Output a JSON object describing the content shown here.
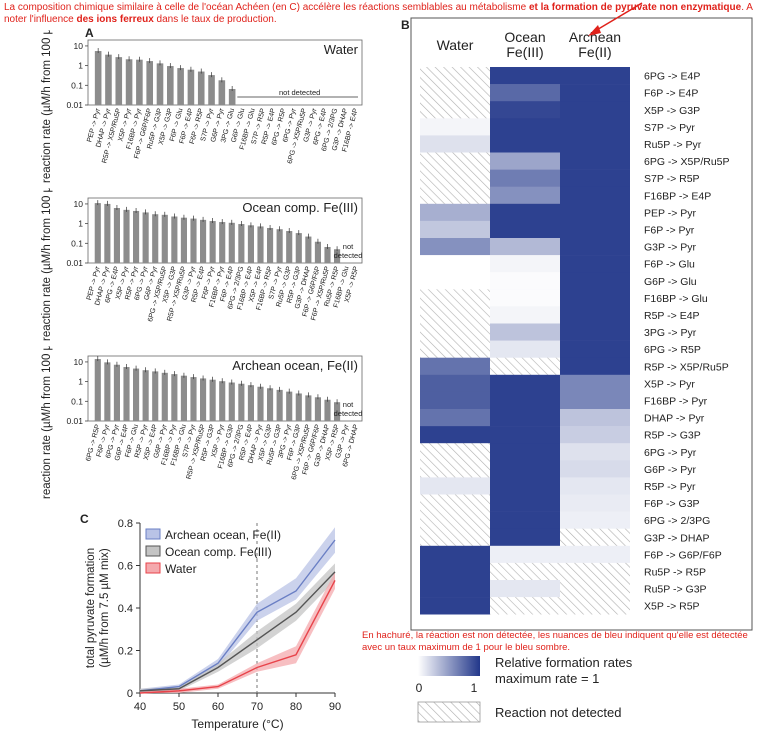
{
  "annotations": {
    "top_note_part1": "La composition chimique similaire à celle de l'océan Achéen (en C) accélère les réactions semblables au métabolisme ",
    "top_note_bold1": "et la formation de pyruvate non enzymatique",
    "top_note_part2": ". A noter l'influence ",
    "top_note_bold2": "des ions ferreux",
    "top_note_part3": " dans le taux de production.",
    "heatmap_note": "En hachuré, la réaction est non détectée, les nuances de bleu indiquent qu'elle est détectée avec un taux maximum de 1 pour le bleu sombre."
  },
  "panel_labels": {
    "a": "A",
    "b": "B",
    "c": "C"
  },
  "colors": {
    "note_red": "#e0221b",
    "bar_gray": "#8c8c8c",
    "heat_dark": "#22378a",
    "heat_light": "#ffffff",
    "line_archean": "#6a7fc4",
    "band_archean": "#b9c3e6",
    "line_ocean": "#555555",
    "band_ocean": "#c4c4c4",
    "line_water": "#e8434a",
    "band_water": "#f4a9ad"
  },
  "chart_data": [
    {
      "type": "bar",
      "title": "Water",
      "ylabel": "reaction rate (µM/h from 100 µM Substrate)",
      "yscale": "log",
      "ylim": [
        0.01,
        20
      ],
      "yticks": [
        "0.01",
        "0.1",
        "1",
        "10"
      ],
      "categories": [
        "PEP -> Pyr",
        "DHAP -> Pyr",
        "R5P -> X5P/Ru5P",
        "X5P -> Pyr",
        "F16BP -> Pyr",
        "F6P -> G6P/F6P",
        "Ru5P -> G3P",
        "X5P -> G3P",
        "F6P -> Glu",
        "F6P -> E4P",
        "F6P -> R5P",
        "S7P -> Pyr",
        "G6P -> Pyr",
        "3PG -> Glu",
        "G6P -> Glu",
        "F16BP -> Glu",
        "S7P -> R5P",
        "R5P -> E4P",
        "6PG -> R5P",
        "6PG -> Pyr",
        "6PG -> X5P/Ru5P",
        "G3P -> Pyr",
        "6PG -> E4P",
        "6PG -> 2/3PG",
        "G3P -> DHAP",
        "F16BP -> E4P"
      ],
      "values": [
        5.5,
        3.6,
        2.7,
        2.1,
        2.0,
        1.7,
        1.3,
        0.95,
        0.75,
        0.62,
        0.5,
        0.33,
        0.18,
        0.065,
        null,
        null,
        null,
        null,
        null,
        null,
        null,
        null,
        null,
        null,
        null,
        null
      ],
      "annotation": "not detected"
    },
    {
      "type": "bar",
      "title": "Ocean comp. Fe(III)",
      "ylabel": "reaction rate (µM/h from 100 µM Substrate)",
      "yscale": "log",
      "ylim": [
        0.01,
        20
      ],
      "yticks": [
        "0.01",
        "0.1",
        "1",
        "10"
      ],
      "categories": [
        "PEP -> Pyr",
        "DHAP -> Pyr",
        "6PG -> E4P",
        "X5P -> Pyr",
        "R5P -> Pyr",
        "6PG -> Pyr",
        "G6P -> Pyr",
        "6PG -> X5P/Ru5P",
        "X5P -> G3P",
        "R5P -> X5P/Ru5P",
        "G3P -> Pyr",
        "R5P -> E4P",
        "F6P -> Pyr",
        "F16BP -> Pyr",
        "F6P -> E4P",
        "6PG -> 2/3PG",
        "F16BP -> E4P",
        "X5P -> E4P",
        "F16BP -> R5P",
        "S7P -> Pyr",
        "Ru5P -> G3P",
        "R5P -> G3P",
        "G3P -> DHAP",
        "F6P -> G6P/F6P",
        "F6P -> X5P/Ru5P",
        "Ru5P -> R5P",
        "F16BP -> Glu",
        "X5P -> R5P"
      ],
      "values": [
        11.0,
        10.0,
        6.2,
        5.0,
        4.4,
        3.7,
        3.0,
        2.8,
        2.3,
        2.0,
        1.8,
        1.55,
        1.35,
        1.2,
        1.1,
        0.95,
        0.82,
        0.72,
        0.6,
        0.52,
        0.42,
        0.33,
        0.22,
        0.12,
        0.065,
        0.05,
        null,
        null
      ],
      "annotation": "not detected"
    },
    {
      "type": "bar",
      "title": "Archean ocean, Fe(II)",
      "ylabel": "reaction rate (µM/h from 100 µM Substrate)",
      "yscale": "log",
      "ylim": [
        0.01,
        20
      ],
      "yticks": [
        "0.01",
        "0.1",
        "1",
        "10"
      ],
      "categories": [
        "6PG -> R5P",
        "F6P -> Pyr",
        "6PG -> Pyr",
        "G6P -> E4P",
        "F6P -> Glu",
        "R5P -> Pyr",
        "X5P -> E4P",
        "G6P -> Pyr",
        "F16BP -> Pyr",
        "F16BP -> Glu",
        "S7P -> Pyr",
        "R5P -> X5P/Ru5P",
        "R5P -> G3P",
        "X5P -> Pyr",
        "F16BP -> G3P",
        "6PG -> 2/3PG",
        "R5P -> E4P",
        "DHAP -> Pyr",
        "X5P -> G3P",
        "Ru5P -> G3P",
        "3PG -> Pyr",
        "F6P -> G3P",
        "6PG -> X5P/Ru5P",
        "F6P -> G6P/F6P",
        "G3P -> DHAP",
        "X5P -> R5P",
        "G3P -> Pyr",
        "6PG -> DHAP"
      ],
      "values": [
        14.0,
        9.5,
        7.2,
        5.5,
        4.6,
        3.8,
        3.3,
        2.8,
        2.4,
        2.0,
        1.7,
        1.45,
        1.25,
        1.05,
        0.9,
        0.78,
        0.66,
        0.55,
        0.46,
        0.38,
        0.31,
        0.25,
        0.2,
        0.16,
        0.12,
        0.09,
        null,
        null
      ],
      "annotation": "not detected"
    },
    {
      "type": "heatmap",
      "columns": [
        "Water",
        "Ocean Fe(III)",
        "Archean Fe(II)"
      ],
      "rows": [
        "6PG -> E4P",
        "F6P -> E4P",
        "X5P -> G3P",
        "S7P -> Pyr",
        "Ru5P -> Pyr",
        "6PG -> X5P/Ru5P",
        "S7P -> R5P",
        "F16BP -> E4P",
        "PEP -> Pyr",
        "F6P -> Pyr",
        "G3P -> Pyr",
        "F6P -> Glu",
        "G6P -> Glu",
        "F16BP -> Glu",
        "R5P -> E4P",
        "3PG -> Pyr",
        "6PG -> R5P",
        "R5P -> X5P/Ru5P",
        "X5P -> Pyr",
        "F16BP -> Pyr",
        "DHAP -> Pyr",
        "R5P -> G3P",
        "6PG -> Pyr",
        "G6P -> Pyr",
        "R5P -> Pyr",
        "F6P -> G3P",
        "6PG -> 2/3PG",
        "G3P -> DHAP",
        "F6P -> G6P/F6P",
        "Ru5P -> R5P",
        "Ru5P -> G3P",
        "X5P -> R5P"
      ],
      "values": [
        [
          null,
          0.95,
          0.95
        ],
        [
          null,
          0.75,
          0.95
        ],
        [
          null,
          0.92,
          0.95
        ],
        [
          0.05,
          0.95,
          0.95
        ],
        [
          0.15,
          0.95,
          0.95
        ],
        [
          null,
          0.45,
          0.95
        ],
        [
          null,
          0.65,
          0.95
        ],
        [
          null,
          0.55,
          0.95
        ],
        [
          0.4,
          0.95,
          0.95
        ],
        [
          0.28,
          0.95,
          0.95
        ],
        [
          0.55,
          0.35,
          0.95
        ],
        [
          0.0,
          0.05,
          0.95
        ],
        [
          0.0,
          0.02,
          0.95
        ],
        [
          null,
          0.02,
          0.95
        ],
        [
          null,
          0.05,
          0.95
        ],
        [
          null,
          0.3,
          0.95
        ],
        [
          null,
          0.12,
          0.95
        ],
        [
          0.7,
          null,
          0.95
        ],
        [
          0.8,
          0.95,
          0.6
        ],
        [
          0.8,
          0.95,
          0.6
        ],
        [
          0.7,
          0.95,
          0.3
        ],
        [
          0.95,
          0.95,
          0.25
        ],
        [
          null,
          0.95,
          0.15
        ],
        [
          null,
          0.95,
          0.18
        ],
        [
          0.12,
          0.95,
          0.12
        ],
        [
          null,
          0.95,
          0.1
        ],
        [
          null,
          0.95,
          0.08
        ],
        [
          null,
          0.95,
          null
        ],
        [
          0.95,
          0.08,
          0.08
        ],
        [
          0.95,
          null,
          null
        ],
        [
          0.95,
          0.12,
          null
        ],
        [
          0.95,
          null,
          null
        ]
      ],
      "scale_label": "Relative formation rates maximum rate = 1",
      "scale_min": "0",
      "scale_max": "1",
      "not_detected_label": "Reaction not detected"
    },
    {
      "type": "line",
      "xlabel": "Temperature (°C)",
      "ylabel": "total pyruvate formation (µM/h from 7.5 µM mix)",
      "x": [
        40,
        50,
        60,
        70,
        80,
        90
      ],
      "xlim": [
        40,
        90
      ],
      "ylim": [
        0,
        0.8
      ],
      "xticks": [
        "40",
        "50",
        "60",
        "70",
        "80",
        "90"
      ],
      "yticks": [
        "0",
        "0.2",
        "0.4",
        "0.6",
        "0.8"
      ],
      "vline_x": 70,
      "legend_position": "top-left",
      "series": [
        {
          "name": "Archean ocean, Fe(II)",
          "values": [
            0.01,
            0.03,
            0.14,
            0.38,
            0.48,
            0.72
          ],
          "low": [
            0.0,
            0.02,
            0.12,
            0.34,
            0.44,
            0.66
          ],
          "high": [
            0.02,
            0.04,
            0.16,
            0.42,
            0.54,
            0.78
          ]
        },
        {
          "name": "Ocean comp.  Fe(III)",
          "values": [
            0.01,
            0.02,
            0.12,
            0.25,
            0.38,
            0.57
          ],
          "low": [
            0.0,
            0.01,
            0.1,
            0.21,
            0.34,
            0.53
          ],
          "high": [
            0.02,
            0.03,
            0.14,
            0.29,
            0.42,
            0.61
          ]
        },
        {
          "name": "Water",
          "values": [
            0.0,
            0.01,
            0.03,
            0.12,
            0.18,
            0.53
          ],
          "low": [
            0.0,
            0.0,
            0.02,
            0.1,
            0.14,
            0.49
          ],
          "high": [
            0.01,
            0.02,
            0.04,
            0.14,
            0.22,
            0.57
          ]
        }
      ]
    }
  ]
}
